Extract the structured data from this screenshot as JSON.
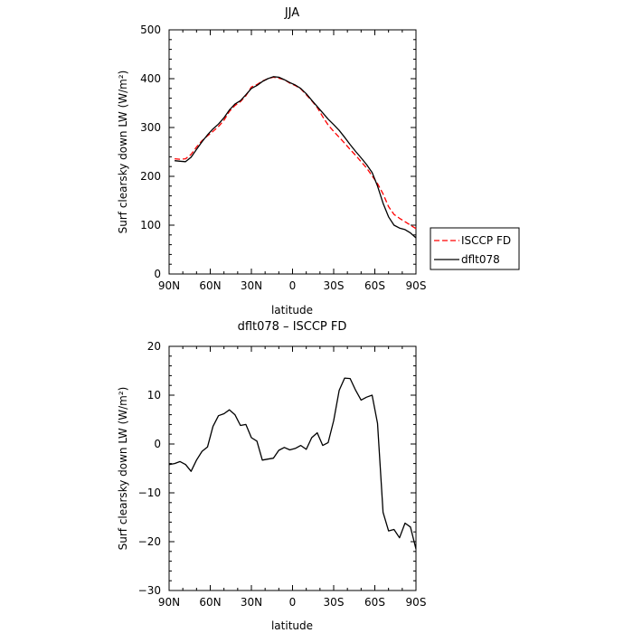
{
  "chart_data": [
    {
      "type": "line",
      "title": "JJA",
      "xlabel": "latitude",
      "ylabel": "Surf clearsky down LW (W/m²)",
      "xlim": [
        90,
        -90
      ],
      "ylim": [
        0,
        500
      ],
      "xticks": [
        90,
        60,
        30,
        0,
        -30,
        -60,
        -90
      ],
      "xtick_labels": [
        "90N",
        "60N",
        "30N",
        "0",
        "30S",
        "60S",
        "90S"
      ],
      "yticks": [
        0,
        100,
        200,
        300,
        400,
        500
      ],
      "ytick_labels": [
        "0",
        "100",
        "200",
        "300",
        "400",
        "500"
      ],
      "legend": "right, outside plot",
      "series": [
        {
          "name": "ISCCP FD",
          "style": "dashed",
          "color": "#ff0000",
          "x": [
            86,
            82,
            78,
            74,
            70,
            66,
            62,
            58,
            54,
            50,
            46,
            42,
            38,
            34,
            30,
            26,
            22,
            18,
            14,
            10,
            6,
            2,
            -2,
            -6,
            -10,
            -14,
            -18,
            -22,
            -26,
            -30,
            -34,
            -38,
            -42,
            -46,
            -50,
            -54,
            -58,
            -62,
            -66,
            -70,
            -74,
            -78,
            -82,
            -86,
            -90
          ],
          "y": [
            236,
            235,
            236,
            245,
            260,
            273,
            283,
            292,
            302,
            315,
            333,
            345,
            353,
            365,
            383,
            388,
            395,
            400,
            403,
            401,
            398,
            391,
            386,
            379,
            367,
            355,
            341,
            322,
            305,
            292,
            280,
            268,
            255,
            243,
            230,
            217,
            201,
            185,
            164,
            138,
            122,
            114,
            107,
            100,
            93
          ]
        },
        {
          "name": "dflt078",
          "style": "solid",
          "color": "#000000",
          "x": [
            86,
            82,
            78,
            74,
            70,
            66,
            62,
            58,
            54,
            50,
            46,
            42,
            38,
            34,
            30,
            26,
            22,
            18,
            14,
            10,
            6,
            2,
            -2,
            -6,
            -10,
            -14,
            -18,
            -22,
            -26,
            -30,
            -34,
            -38,
            -42,
            -46,
            -50,
            -54,
            -58,
            -62,
            -66,
            -70,
            -74,
            -78,
            -82,
            -86,
            -90
          ],
          "y": [
            232,
            231,
            230,
            239,
            255,
            271,
            285,
            297,
            307,
            320,
            336,
            348,
            355,
            367,
            380,
            386,
            394,
            400,
            404,
            403,
            398,
            392,
            387,
            380,
            369,
            356,
            343,
            330,
            317,
            306,
            294,
            280,
            265,
            251,
            238,
            224,
            208,
            180,
            145,
            117,
            100,
            94,
            91,
            84,
            74
          ]
        }
      ]
    },
    {
      "type": "line",
      "title": "dflt078 – ISCCP FD",
      "xlabel": "latitude",
      "ylabel": "Surf clearsky down LW (W/m²)",
      "xlim": [
        90,
        -90
      ],
      "ylim": [
        -30,
        20
      ],
      "xticks": [
        90,
        60,
        30,
        0,
        -30,
        -60,
        -90
      ],
      "xtick_labels": [
        "90N",
        "60N",
        "30N",
        "0",
        "30S",
        "60S",
        "90S"
      ],
      "yticks": [
        -30,
        -20,
        -10,
        0,
        10,
        20
      ],
      "ytick_labels": [
        "−30",
        "−20",
        "−10",
        "0",
        "10",
        "20"
      ],
      "series": [
        {
          "style": "solid",
          "color": "#000000",
          "x": [
            90,
            86,
            82,
            78,
            74,
            70,
            66,
            62,
            58,
            54,
            50,
            46,
            42,
            38,
            34,
            30,
            26,
            22,
            18,
            14,
            10,
            6,
            2,
            -2,
            -6,
            -10,
            -14,
            -18,
            -22,
            -26,
            -30,
            -34,
            -38,
            -42,
            -46,
            -50,
            -54,
            -58,
            -62,
            -66,
            -70,
            -74,
            -78,
            -82,
            -86,
            -90
          ],
          "y": [
            -4.2,
            -4.0,
            -3.6,
            -4.2,
            -5.6,
            -3.3,
            -1.5,
            -0.6,
            3.6,
            5.8,
            6.2,
            7.0,
            6.0,
            3.8,
            4.0,
            1.3,
            0.6,
            -3.3,
            -3.1,
            -2.9,
            -1.3,
            -0.7,
            -1.2,
            -0.9,
            -0.3,
            -1.1,
            1.3,
            2.3,
            -0.3,
            0.3,
            4.8,
            11.0,
            13.5,
            13.4,
            11.0,
            9.0,
            9.6,
            10.0,
            4.2,
            -14.0,
            -17.8,
            -17.5,
            -19.2,
            -16.2,
            -17.0,
            -21.5
          ]
        }
      ]
    }
  ]
}
